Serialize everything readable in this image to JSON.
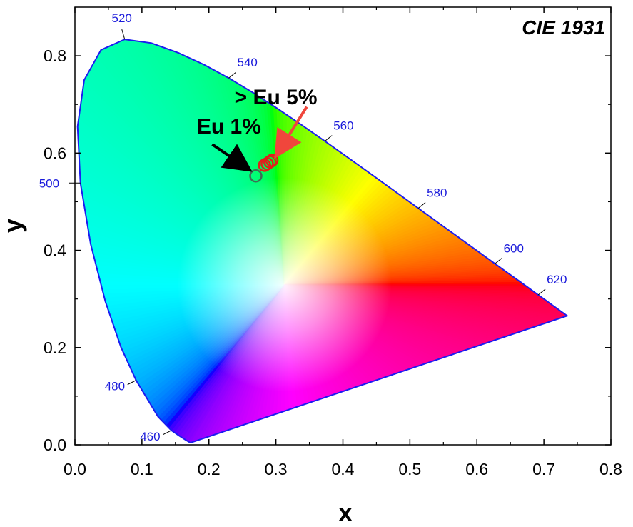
{
  "chart_data": {
    "type": "scatter",
    "title": "",
    "badge": "CIE 1931",
    "xlabel": "x",
    "ylabel": "y",
    "xlim": [
      0.0,
      0.8
    ],
    "ylim": [
      0.0,
      0.9
    ],
    "x_ticks": [
      0.0,
      0.1,
      0.2,
      0.3,
      0.4,
      0.5,
      0.6,
      0.7,
      0.8
    ],
    "x_tick_labels": [
      "0.0",
      "0.1",
      "0.2",
      "0.3",
      "0.4",
      "0.5",
      "0.6",
      "0.7",
      "0.8"
    ],
    "y_ticks": [
      0.0,
      0.2,
      0.4,
      0.6,
      0.8
    ],
    "y_tick_labels": [
      "0.0",
      "0.2",
      "0.4",
      "0.6",
      "0.8"
    ],
    "grid": false,
    "locus": [
      [
        0.1741,
        0.005
      ],
      [
        0.1738,
        0.0049
      ],
      [
        0.1733,
        0.0048
      ],
      [
        0.1726,
        0.0048
      ],
      [
        0.1714,
        0.0051
      ],
      [
        0.1689,
        0.0069
      ],
      [
        0.1644,
        0.0109
      ],
      [
        0.1566,
        0.0177
      ],
      [
        0.144,
        0.0297
      ],
      [
        0.1241,
        0.0578
      ],
      [
        0.0913,
        0.1327
      ],
      [
        0.0687,
        0.2007
      ],
      [
        0.0454,
        0.295
      ],
      [
        0.0235,
        0.4127
      ],
      [
        0.0082,
        0.5384
      ],
      [
        0.0039,
        0.6548
      ],
      [
        0.0139,
        0.7502
      ],
      [
        0.0389,
        0.812
      ],
      [
        0.0743,
        0.8338
      ],
      [
        0.1142,
        0.8262
      ],
      [
        0.1547,
        0.8059
      ],
      [
        0.1929,
        0.7816
      ],
      [
        0.2296,
        0.7543
      ],
      [
        0.2658,
        0.7243
      ],
      [
        0.3016,
        0.6923
      ],
      [
        0.3373,
        0.6589
      ],
      [
        0.3731,
        0.6245
      ],
      [
        0.4087,
        0.5896
      ],
      [
        0.4441,
        0.5547
      ],
      [
        0.4788,
        0.5202
      ],
      [
        0.5125,
        0.4866
      ],
      [
        0.5448,
        0.4544
      ],
      [
        0.5752,
        0.4242
      ],
      [
        0.6029,
        0.3965
      ],
      [
        0.627,
        0.3725
      ],
      [
        0.6482,
        0.3514
      ],
      [
        0.6658,
        0.334
      ],
      [
        0.6801,
        0.3197
      ],
      [
        0.6915,
        0.3083
      ],
      [
        0.7006,
        0.2993
      ],
      [
        0.7079,
        0.292
      ],
      [
        0.714,
        0.2859
      ],
      [
        0.719,
        0.2809
      ],
      [
        0.723,
        0.277
      ],
      [
        0.726,
        0.274
      ],
      [
        0.7283,
        0.2717
      ],
      [
        0.73,
        0.27
      ],
      [
        0.7311,
        0.2689
      ],
      [
        0.732,
        0.268
      ],
      [
        0.7327,
        0.2673
      ],
      [
        0.7334,
        0.2666
      ],
      [
        0.734,
        0.266
      ],
      [
        0.7344,
        0.2656
      ],
      [
        0.7346,
        0.2654
      ],
      [
        0.7347,
        0.2653
      ]
    ],
    "wavelength_labels": [
      {
        "label": "460",
        "x": 0.144,
        "y": 0.0297,
        "side": "lower-left"
      },
      {
        "label": "480",
        "x": 0.0913,
        "y": 0.1327,
        "side": "lower-left"
      },
      {
        "label": "500",
        "x": 0.0082,
        "y": 0.5384,
        "side": "left"
      },
      {
        "label": "520",
        "x": 0.0743,
        "y": 0.8338,
        "side": "top"
      },
      {
        "label": "540",
        "x": 0.2296,
        "y": 0.7543,
        "side": "top-right"
      },
      {
        "label": "560",
        "x": 0.3731,
        "y": 0.6245,
        "side": "top-right"
      },
      {
        "label": "580",
        "x": 0.5125,
        "y": 0.4866,
        "side": "top-right"
      },
      {
        "label": "600",
        "x": 0.627,
        "y": 0.3725,
        "side": "top-right"
      },
      {
        "label": "620",
        "x": 0.6915,
        "y": 0.3083,
        "side": "top-right"
      }
    ],
    "series": [
      {
        "name": "Eu 1%",
        "color": "#3f6f55",
        "points": [
          [
            0.27,
            0.553
          ]
        ]
      },
      {
        "name": "> Eu 5%",
        "color": "#e0201b",
        "points": [
          [
            0.283,
            0.575
          ],
          [
            0.287,
            0.578
          ],
          [
            0.291,
            0.582
          ],
          [
            0.294,
            0.585
          ]
        ]
      }
    ],
    "annotations": [
      {
        "text": "Eu 1%",
        "arrow_color": "#000000",
        "text_at": [
          0.23,
          0.64
        ],
        "arrow_from": [
          0.205,
          0.618
        ],
        "arrow_to": [
          0.258,
          0.568
        ]
      },
      {
        "text": "> Eu 5%",
        "arrow_color": "#f0463c",
        "text_at": [
          0.3,
          0.7
        ],
        "arrow_from": [
          0.346,
          0.695
        ],
        "arrow_to": [
          0.302,
          0.598
        ]
      }
    ],
    "colors": {
      "locus": "#1c1cf0",
      "wavelength_text": "#1a1adb",
      "frame": "#000000"
    }
  }
}
